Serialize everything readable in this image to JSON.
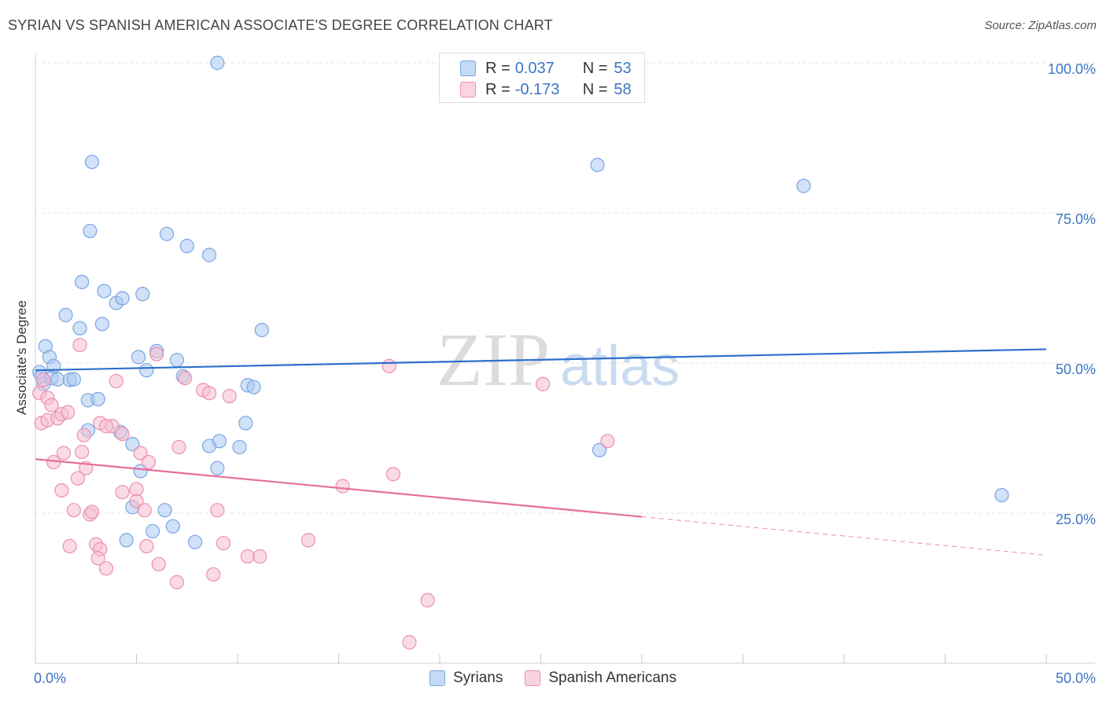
{
  "header": {
    "title": "SYRIAN VS SPANISH AMERICAN ASSOCIATE'S DEGREE CORRELATION CHART",
    "source": "Source: ZipAtlas.com"
  },
  "watermark": {
    "zip": "ZIP",
    "atlas": "atlas"
  },
  "legend": {
    "series": [
      {
        "name": "Syrians",
        "r_label": "R =",
        "r_value": "0.037",
        "n_label": "N =",
        "n_value": "53",
        "color": "#a9c8f2",
        "stroke": "#7aa6e0"
      },
      {
        "name": "Spanish Americans",
        "r_label": "R =",
        "r_value": "-0.173",
        "n_label": "N =",
        "n_value": "58",
        "color": "#f6bed0",
        "stroke": "#ec8fae"
      }
    ]
  },
  "chart_data": {
    "type": "scatter",
    "title": "SYRIAN VS SPANISH AMERICAN ASSOCIATE'S DEGREE CORRELATION CHART",
    "xlabel": "",
    "ylabel": "Associate's Degree",
    "xlim": [
      0,
      50
    ],
    "ylim": [
      0,
      100
    ],
    "x_tick_labels": [
      "0.0%",
      "50.0%"
    ],
    "y_tick_values": [
      25,
      50,
      75,
      100
    ],
    "y_tick_labels": [
      "25.0%",
      "50.0%",
      "75.0%",
      "100.0%"
    ],
    "grid": "horizontal dashed",
    "legend_position": "top-center",
    "series": [
      {
        "name": "Syrians",
        "color": "#a9c8f2",
        "stroke": "#7aa6e0",
        "line_color": "#2d6fcb",
        "trend": {
          "x0": 0,
          "y0": 48.8,
          "x1": 50,
          "y1": 52.3,
          "dashed_from": null
        },
        "points": [
          [
            0.2,
            48.5
          ],
          [
            0.5,
            52.8
          ],
          [
            0.7,
            51.0
          ],
          [
            0.9,
            49.5
          ],
          [
            0.4,
            46.5
          ],
          [
            0.3,
            47.8
          ],
          [
            0.8,
            47.5
          ],
          [
            1.1,
            47.3
          ],
          [
            1.7,
            47.2
          ],
          [
            1.9,
            47.3
          ],
          [
            1.5,
            58.0
          ],
          [
            2.3,
            63.5
          ],
          [
            2.2,
            55.8
          ],
          [
            2.7,
            72.0
          ],
          [
            2.8,
            83.5
          ],
          [
            3.4,
            62.0
          ],
          [
            3.3,
            56.5
          ],
          [
            4.0,
            60.0
          ],
          [
            4.3,
            60.8
          ],
          [
            5.3,
            61.5
          ],
          [
            5.1,
            51.0
          ],
          [
            5.5,
            48.8
          ],
          [
            6.0,
            52.0
          ],
          [
            6.5,
            71.5
          ],
          [
            7.0,
            50.5
          ],
          [
            7.3,
            47.8
          ],
          [
            7.5,
            69.5
          ],
          [
            8.6,
            68.0
          ],
          [
            9.0,
            100.0
          ],
          [
            11.2,
            55.5
          ],
          [
            10.5,
            46.3
          ],
          [
            10.8,
            46.0
          ],
          [
            2.6,
            43.8
          ],
          [
            3.1,
            44.0
          ],
          [
            2.6,
            38.8
          ],
          [
            4.2,
            38.5
          ],
          [
            4.8,
            36.5
          ],
          [
            5.2,
            32.0
          ],
          [
            8.6,
            36.2
          ],
          [
            9.1,
            37.0
          ],
          [
            9.0,
            32.5
          ],
          [
            10.1,
            36.0
          ],
          [
            10.4,
            40.0
          ],
          [
            6.4,
            25.5
          ],
          [
            4.8,
            26.0
          ],
          [
            6.8,
            22.8
          ],
          [
            5.8,
            22.0
          ],
          [
            4.5,
            20.5
          ],
          [
            7.9,
            20.2
          ],
          [
            27.8,
            83.0
          ],
          [
            38.0,
            79.5
          ],
          [
            27.9,
            35.5
          ],
          [
            47.8,
            28.0
          ]
        ]
      },
      {
        "name": "Spanish Americans",
        "color": "#f6bed0",
        "stroke": "#ec8fae",
        "line_color": "#e4709a",
        "trend": {
          "x0": 0,
          "y0": 34.0,
          "x1": 50,
          "y1": 18.0,
          "dashed_from": 30
        },
        "points": [
          [
            0.2,
            45.0
          ],
          [
            0.4,
            47.2
          ],
          [
            0.6,
            44.2
          ],
          [
            0.8,
            43.0
          ],
          [
            0.3,
            40.0
          ],
          [
            0.6,
            40.5
          ],
          [
            1.1,
            40.8
          ],
          [
            1.3,
            41.5
          ],
          [
            1.6,
            41.8
          ],
          [
            2.2,
            53.0
          ],
          [
            4.0,
            47.0
          ],
          [
            6.0,
            51.5
          ],
          [
            7.4,
            47.5
          ],
          [
            8.3,
            45.5
          ],
          [
            8.6,
            45.0
          ],
          [
            9.6,
            44.5
          ],
          [
            17.5,
            49.5
          ],
          [
            25.1,
            46.5
          ],
          [
            2.4,
            38.0
          ],
          [
            3.2,
            40.0
          ],
          [
            3.8,
            39.5
          ],
          [
            4.3,
            38.2
          ],
          [
            1.4,
            35.0
          ],
          [
            0.9,
            33.5
          ],
          [
            2.3,
            35.2
          ],
          [
            2.5,
            32.5
          ],
          [
            2.1,
            30.8
          ],
          [
            1.3,
            28.8
          ],
          [
            5.2,
            35.0
          ],
          [
            5.6,
            33.5
          ],
          [
            7.1,
            36.0
          ],
          [
            4.3,
            28.5
          ],
          [
            5.0,
            29.0
          ],
          [
            5.0,
            27.0
          ],
          [
            5.4,
            25.5
          ],
          [
            1.9,
            25.5
          ],
          [
            2.7,
            24.8
          ],
          [
            2.8,
            25.2
          ],
          [
            9.0,
            25.5
          ],
          [
            3.0,
            19.8
          ],
          [
            3.2,
            19.0
          ],
          [
            1.7,
            19.5
          ],
          [
            5.5,
            19.5
          ],
          [
            3.1,
            17.5
          ],
          [
            3.5,
            15.8
          ],
          [
            6.1,
            16.5
          ],
          [
            7.0,
            13.5
          ],
          [
            8.8,
            14.8
          ],
          [
            9.3,
            20.0
          ],
          [
            10.5,
            17.8
          ],
          [
            11.1,
            17.8
          ],
          [
            13.5,
            20.5
          ],
          [
            15.2,
            29.5
          ],
          [
            17.7,
            31.5
          ],
          [
            28.3,
            37.0
          ],
          [
            19.4,
            10.5
          ],
          [
            18.5,
            3.5
          ],
          [
            3.5,
            39.5
          ]
        ]
      }
    ]
  }
}
